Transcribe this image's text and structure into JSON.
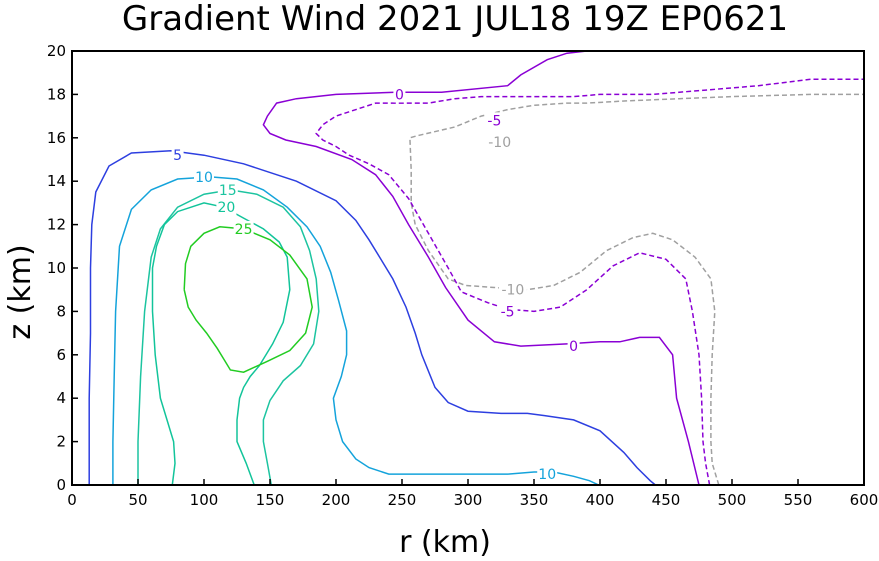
{
  "chart_data": {
    "type": "contour",
    "title": "Gradient Wind 2021 JUL18 19Z   EP0621",
    "xlabel": "r (km)",
    "ylabel": "z (km)",
    "xlim": [
      0,
      600
    ],
    "ylim": [
      0,
      20
    ],
    "xticks": [
      0,
      50,
      100,
      150,
      200,
      250,
      300,
      350,
      400,
      450,
      500,
      550,
      600
    ],
    "yticks": [
      0,
      2,
      4,
      6,
      8,
      10,
      12,
      14,
      16,
      18,
      20
    ],
    "grid": false,
    "levels": [
      {
        "value": -10,
        "color": "#a0a0a0",
        "dashed": true,
        "paths": [
          [
            [
              490,
              0
            ],
            [
              485,
              1
            ],
            [
              484,
              2
            ],
            [
              484,
              4
            ],
            [
              485,
              6
            ],
            [
              487,
              8
            ],
            [
              484,
              9.5
            ],
            [
              472,
              10.5
            ],
            [
              455,
              11.3
            ],
            [
              440,
              11.6
            ],
            [
              425,
              11.4
            ],
            [
              405,
              10.8
            ],
            [
              385,
              9.8
            ],
            [
              365,
              9.2
            ],
            [
              345,
              9.0
            ],
            [
              320,
              9.1
            ],
            [
              298,
              9.2
            ],
            [
              285,
              9.5
            ],
            [
              270,
              10.8
            ],
            [
              260,
              12.0
            ],
            [
              257,
              13.0
            ],
            [
              257,
              14.5
            ],
            [
              256,
              16.0
            ],
            [
              262,
              16.1
            ],
            [
              290,
              16.5
            ],
            [
              310,
              17.0
            ],
            [
              330,
              17.3
            ],
            [
              350,
              17.5
            ],
            [
              375,
              17.6
            ],
            [
              390,
              17.6
            ],
            [
              420,
              17.7
            ],
            [
              460,
              17.8
            ],
            [
              500,
              17.9
            ],
            [
              560,
              18.0
            ],
            [
              600,
              18.0
            ]
          ]
        ],
        "labels": [
          {
            "text": "-10",
            "x": 334,
            "y": 9.0
          },
          {
            "text": "-10",
            "x": 324,
            "y": 15.8
          }
        ]
      },
      {
        "value": -5,
        "color": "#8a00d4",
        "dashed": true,
        "paths": [
          [
            [
              483,
              0
            ],
            [
              480,
              1
            ],
            [
              478,
              2
            ],
            [
              477,
              4
            ],
            [
              475,
              6
            ],
            [
              470,
              8
            ],
            [
              465,
              9.5
            ],
            [
              450,
              10.4
            ],
            [
              430,
              10.7
            ],
            [
              410,
              10.1
            ],
            [
              390,
              9.0
            ],
            [
              370,
              8.2
            ],
            [
              350,
              8.0
            ],
            [
              330,
              8.1
            ],
            [
              315,
              8.4
            ],
            [
              295,
              8.9
            ],
            [
              285,
              10.0
            ],
            [
              270,
              11.6
            ],
            [
              255,
              13.2
            ],
            [
              240,
              14.3
            ],
            [
              225,
              14.8
            ],
            [
              210,
              15.2
            ],
            [
              200,
              15.6
            ],
            [
              190,
              15.9
            ],
            [
              185,
              16.2
            ],
            [
              190,
              16.6
            ],
            [
              200,
              17.0
            ],
            [
              230,
              17.6
            ],
            [
              270,
              17.6
            ],
            [
              290,
              17.8
            ],
            [
              310,
              17.9
            ],
            [
              330,
              17.9
            ],
            [
              350,
              17.9
            ],
            [
              380,
              17.9
            ],
            [
              400,
              18.0
            ],
            [
              440,
              18.0
            ],
            [
              480,
              18.2
            ],
            [
              520,
              18.4
            ],
            [
              560,
              18.7
            ],
            [
              600,
              18.7
            ]
          ]
        ],
        "labels": [
          {
            "text": "-5",
            "x": 330,
            "y": 8.0
          },
          {
            "text": "-5",
            "x": 320,
            "y": 16.8
          }
        ]
      },
      {
        "value": 0,
        "color": "#8a00d4",
        "dashed": false,
        "paths": [
          [
            [
              475,
              0
            ],
            [
              467,
              2
            ],
            [
              458,
              4
            ],
            [
              455,
              6
            ],
            [
              445,
              6.8
            ],
            [
              430,
              6.8
            ],
            [
              415,
              6.6
            ],
            [
              400,
              6.6
            ],
            [
              375,
              6.5
            ],
            [
              340,
              6.4
            ],
            [
              320,
              6.6
            ],
            [
              300,
              7.6
            ],
            [
              283,
              9.1
            ],
            [
              270,
              10.5
            ],
            [
              255,
              12.0
            ],
            [
              243,
              13.3
            ],
            [
              230,
              14.3
            ],
            [
              212,
              15.0
            ],
            [
              185,
              15.6
            ],
            [
              162,
              15.9
            ],
            [
              150,
              16.2
            ],
            [
              145,
              16.6
            ],
            [
              148,
              17.0
            ],
            [
              155,
              17.6
            ],
            [
              170,
              17.8
            ],
            [
              200,
              18.0
            ],
            [
              245,
              18.1
            ],
            [
              280,
              18.1
            ],
            [
              330,
              18.4
            ],
            [
              340,
              18.9
            ],
            [
              360,
              19.6
            ],
            [
              375,
              19.9
            ],
            [
              390,
              20.0
            ]
          ]
        ],
        "labels": [
          {
            "text": "0",
            "x": 380,
            "y": 6.4
          },
          {
            "text": "0",
            "x": 248,
            "y": 18.0
          }
        ]
      },
      {
        "value": 5,
        "color": "#2d3fe0",
        "dashed": false,
        "paths": [
          [
            [
              13,
              0
            ],
            [
              13,
              2
            ],
            [
              13,
              4
            ],
            [
              14,
              7
            ],
            [
              14,
              10
            ],
            [
              15,
              12
            ],
            [
              18,
              13.5
            ],
            [
              28,
              14.7
            ],
            [
              45,
              15.3
            ],
            [
              75,
              15.4
            ],
            [
              100,
              15.2
            ],
            [
              130,
              14.8
            ],
            [
              170,
              14.0
            ],
            [
              200,
              13.1
            ],
            [
              215,
              12.2
            ],
            [
              225,
              11.3
            ],
            [
              233,
              10.5
            ],
            [
              243,
              9.5
            ],
            [
              253,
              8.2
            ],
            [
              260,
              7.0
            ],
            [
              265,
              6.0
            ],
            [
              275,
              4.5
            ],
            [
              285,
              3.8
            ],
            [
              300,
              3.4
            ],
            [
              325,
              3.3
            ],
            [
              345,
              3.3
            ],
            [
              358,
              3.2
            ],
            [
              380,
              3.0
            ],
            [
              400,
              2.5
            ],
            [
              418,
              1.5
            ],
            [
              428,
              0.8
            ],
            [
              438,
              0.2
            ],
            [
              442,
              0
            ]
          ]
        ],
        "labels": [
          {
            "text": "5",
            "x": 80,
            "y": 15.2
          }
        ]
      },
      {
        "value": 10,
        "color": "#14a3db",
        "dashed": false,
        "paths": [
          [
            [
              31,
              0
            ],
            [
              31,
              2
            ],
            [
              32,
              5
            ],
            [
              33,
              8
            ],
            [
              36,
              11
            ],
            [
              45,
              12.7
            ],
            [
              60,
              13.6
            ],
            [
              80,
              14.1
            ],
            [
              105,
              14.2
            ],
            [
              125,
              14.1
            ],
            [
              145,
              13.6
            ],
            [
              163,
              12.8
            ],
            [
              178,
              11.9
            ],
            [
              188,
              11.0
            ],
            [
              196,
              9.8
            ],
            [
              202,
              8.5
            ],
            [
              208,
              7.1
            ],
            [
              208,
              6.0
            ],
            [
              204,
              5.0
            ],
            [
              198,
              4.0
            ],
            [
              200,
              3.0
            ],
            [
              205,
              2.0
            ],
            [
              215,
              1.2
            ],
            [
              225,
              0.8
            ],
            [
              240,
              0.5
            ],
            [
              260,
              0.5
            ],
            [
              300,
              0.5
            ],
            [
              330,
              0.5
            ],
            [
              350,
              0.6
            ],
            [
              365,
              0.6
            ],
            [
              380,
              0.4
            ],
            [
              392,
              0.2
            ],
            [
              399,
              0
            ]
          ]
        ],
        "labels": [
          {
            "text": "10",
            "x": 100,
            "y": 14.2
          },
          {
            "text": "10",
            "x": 360,
            "y": 0.5
          }
        ]
      },
      {
        "value": 15,
        "color": "#1cc4a0",
        "dashed": false,
        "paths": [
          [
            [
              50,
              0
            ],
            [
              50,
              2
            ],
            [
              52,
              5
            ],
            [
              55,
              8
            ],
            [
              60,
              10.5
            ],
            [
              67,
              11.8
            ],
            [
              80,
              12.8
            ],
            [
              100,
              13.4
            ],
            [
              120,
              13.6
            ],
            [
              140,
              13.4
            ],
            [
              160,
              12.8
            ],
            [
              173,
              11.9
            ],
            [
              180,
              10.8
            ],
            [
              185,
              9.5
            ],
            [
              187,
              8.0
            ],
            [
              183,
              6.5
            ],
            [
              173,
              5.5
            ],
            [
              160,
              4.8
            ],
            [
              150,
              3.9
            ],
            [
              145,
              3.0
            ],
            [
              145,
              2.0
            ],
            [
              148,
              1.0
            ],
            [
              151,
              0
            ]
          ]
        ],
        "labels": [
          {
            "text": "15",
            "x": 118,
            "y": 13.6
          }
        ]
      },
      {
        "value": 20,
        "color": "#12c49a",
        "dashed": false,
        "paths": [
          [
            [
              76,
              0
            ],
            [
              78,
              1
            ],
            [
              77,
              2
            ],
            [
              72,
              3
            ],
            [
              67,
              4
            ],
            [
              63,
              6
            ],
            [
              61,
              8
            ],
            [
              61,
              10
            ],
            [
              64,
              11
            ],
            [
              70,
              12
            ],
            [
              80,
              12.6
            ],
            [
              100,
              13.0
            ],
            [
              115,
              12.8
            ],
            [
              130,
              12.3
            ],
            [
              145,
              11.8
            ],
            [
              157,
              11.2
            ],
            [
              163,
              10.5
            ],
            [
              165,
              9.0
            ],
            [
              160,
              7.5
            ],
            [
              152,
              6.5
            ],
            [
              142,
              5.5
            ],
            [
              135,
              5.0
            ],
            [
              130,
              4.5
            ],
            [
              127,
              4.0
            ],
            [
              125,
              3.0
            ],
            [
              125,
              2.0
            ],
            [
              132,
              1.0
            ],
            [
              138,
              0
            ]
          ]
        ],
        "labels": [
          {
            "text": "20",
            "x": 117,
            "y": 12.8
          }
        ]
      },
      {
        "value": 25,
        "color": "#22cc22",
        "dashed": false,
        "paths": [
          [
            [
              85,
              9.0
            ],
            [
              86,
              10.2
            ],
            [
              90,
              11.0
            ],
            [
              100,
              11.6
            ],
            [
              112,
              11.9
            ],
            [
              130,
              11.8
            ],
            [
              150,
              11.3
            ],
            [
              165,
              10.6
            ],
            [
              178,
              9.5
            ],
            [
              182,
              8.2
            ],
            [
              177,
              7.0
            ],
            [
              165,
              6.2
            ],
            [
              148,
              5.7
            ],
            [
              130,
              5.2
            ],
            [
              120,
              5.3
            ],
            [
              115,
              5.8
            ],
            [
              110,
              6.3
            ],
            [
              102,
              7.0
            ],
            [
              94,
              7.6
            ],
            [
              88,
              8.2
            ],
            [
              85,
              9.0
            ]
          ]
        ],
        "labels": [
          {
            "text": "25",
            "x": 130,
            "y": 11.8
          }
        ]
      }
    ]
  }
}
